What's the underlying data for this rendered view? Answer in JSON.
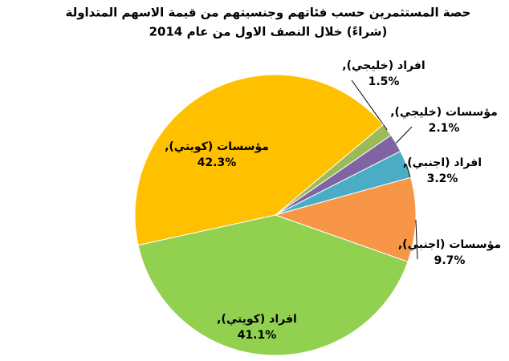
{
  "chart_data": {
    "type": "pie",
    "title": [
      "حصة المستثمرين حسب فئاتهم وجنسيتهم من قيمة الاسهم المتداولة",
      "(شراءً) خلال النصف الاول من عام 2014"
    ],
    "categories": [
      "افراد (خليجي),",
      "مؤسسات (خليجي),",
      "افراد (اجنبي),",
      "مؤسسات (اجنبي),",
      "افراد (كويتي),",
      "مؤسسات (كويتي),"
    ],
    "values": [
      1.5,
      2.1,
      3.2,
      9.7,
      41.1,
      42.3
    ],
    "value_labels": [
      "1.5%",
      "2.1%",
      "3.2%",
      "9.7%",
      "41.1%",
      "42.3%"
    ],
    "colors": [
      "#9bbb59",
      "#8064a2",
      "#4bacc6",
      "#f79646",
      "#92d050",
      "#ffc000"
    ]
  }
}
